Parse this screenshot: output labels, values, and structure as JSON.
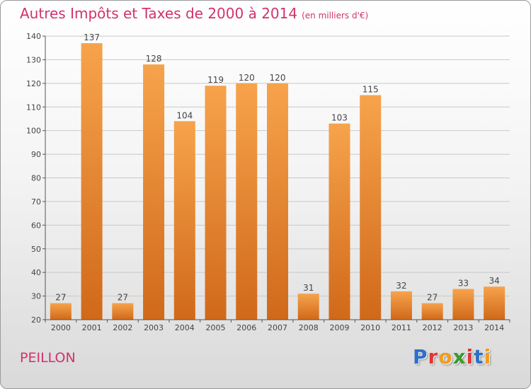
{
  "title": "Autres Impôts et Taxes de 2000 à 2014",
  "subtitle": "(en milliers d'€)",
  "place_label": "PEILLON",
  "logo": {
    "text": "Proxiti",
    "letter_colors": [
      "#2f6fc6",
      "#e2362f",
      "#f39c1b",
      "#3a9a2c",
      "#e2362f",
      "#2f6fc6",
      "#f39c1b"
    ]
  },
  "colors": {
    "bar_top": "#f7a34c",
    "bar_bottom": "#d0691a",
    "text_accent": "#d2326e"
  },
  "chart_data": {
    "type": "bar",
    "title": "Autres Impôts et Taxes de 2000 à 2014",
    "subtitle": "(en milliers d'€)",
    "xlabel": "",
    "ylabel": "",
    "categories": [
      "2000",
      "2001",
      "2002",
      "2003",
      "2004",
      "2005",
      "2006",
      "2007",
      "2008",
      "2009",
      "2010",
      "2011",
      "2012",
      "2013",
      "2014"
    ],
    "values": [
      27,
      137,
      27,
      128,
      104,
      119,
      120,
      120,
      31,
      103,
      115,
      32,
      27,
      33,
      34
    ],
    "ylim": [
      20,
      140
    ],
    "yticks": [
      20,
      30,
      40,
      50,
      60,
      70,
      80,
      90,
      100,
      110,
      120,
      130,
      140
    ],
    "grid": true,
    "data_labels": true
  }
}
